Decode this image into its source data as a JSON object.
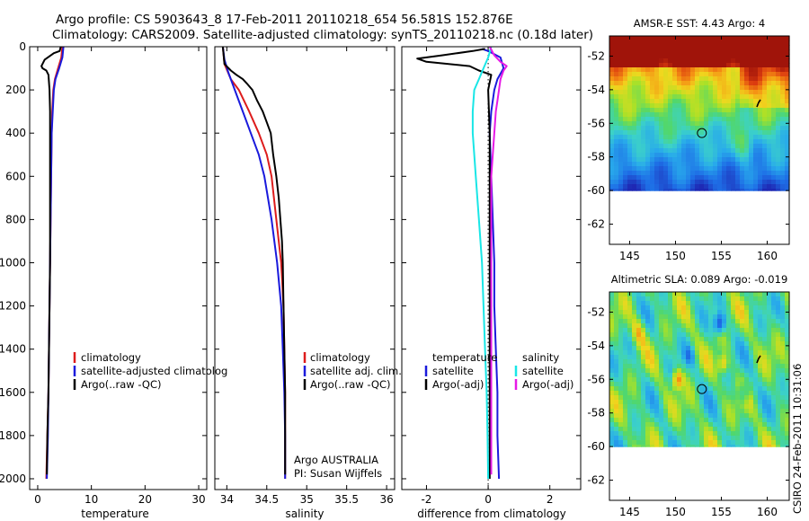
{
  "header": {
    "line1": "Argo profile: CS 5903643_8 17-Feb-2011 20110218_654 56.581S 152.876E",
    "line2": "Climatology: CARS2009. Satellite-adjusted climatology: synTS_20110218.nc (0.18d later)"
  },
  "stamp": "CSIRO 24-Feb-2011 10:31:06",
  "colors": {
    "climatology": "#dd1c1c",
    "satellite_adjusted": "#1a1adc",
    "argo": "#000000",
    "satellite_salinity": "#19e6e6",
    "argo_adj_salinity": "#e619e6"
  },
  "chart_data": [
    {
      "type": "line",
      "xlabel": "temperature",
      "ylabel": "",
      "xlim": [
        -1.5,
        31.5
      ],
      "ylim": [
        2050,
        0
      ],
      "xticks": [
        0,
        10,
        20,
        30
      ],
      "yticks": [
        0,
        200,
        400,
        600,
        800,
        1000,
        1200,
        1400,
        1600,
        1800,
        2000
      ],
      "legend": [
        "climatology",
        "satellite-adjusted climatolog",
        "Argo(..raw -QC)"
      ],
      "series": [
        {
          "name": "climatology",
          "color": "#dd1c1c",
          "points": [
            [
              4.6,
              0
            ],
            [
              4.4,
              50
            ],
            [
              3.8,
              100
            ],
            [
              3.2,
              150
            ],
            [
              2.9,
              200
            ],
            [
              2.7,
              300
            ],
            [
              2.6,
              400
            ],
            [
              2.5,
              600
            ],
            [
              2.4,
              800
            ],
            [
              2.3,
              1000
            ],
            [
              2.2,
              1200
            ],
            [
              2.1,
              1400
            ],
            [
              2.0,
              1600
            ],
            [
              1.8,
              1800
            ],
            [
              1.6,
              2000
            ]
          ]
        },
        {
          "name": "satellite-adjusted climatolog",
          "color": "#1a1adc",
          "points": [
            [
              4.8,
              0
            ],
            [
              4.6,
              50
            ],
            [
              4.0,
              100
            ],
            [
              3.3,
              150
            ],
            [
              3.0,
              200
            ],
            [
              2.8,
              300
            ],
            [
              2.6,
              400
            ],
            [
              2.5,
              600
            ],
            [
              2.4,
              800
            ],
            [
              2.3,
              1000
            ],
            [
              2.2,
              1200
            ],
            [
              2.1,
              1400
            ],
            [
              2.0,
              1600
            ],
            [
              1.9,
              1800
            ],
            [
              1.7,
              2000
            ]
          ]
        },
        {
          "name": "Argo(..raw -QC)",
          "color": "#000000",
          "points": [
            [
              4.3,
              0
            ],
            [
              4.1,
              20
            ],
            [
              3.0,
              30
            ],
            [
              1.3,
              60
            ],
            [
              0.7,
              90
            ],
            [
              0.9,
              100
            ],
            [
              1.6,
              110
            ],
            [
              2.0,
              130
            ],
            [
              2.2,
              200
            ],
            [
              2.3,
              300
            ],
            [
              2.3,
              400
            ],
            [
              2.3,
              600
            ],
            [
              2.3,
              800
            ],
            [
              2.3,
              1000
            ],
            [
              2.2,
              1200
            ],
            [
              2.1,
              1400
            ],
            [
              2.0,
              1600
            ],
            [
              1.8,
              1800
            ],
            [
              1.7,
              1980
            ]
          ]
        }
      ]
    },
    {
      "type": "line",
      "xlabel": "salinity",
      "ylabel": "",
      "xlim": [
        33.85,
        36.1
      ],
      "ylim": [
        2050,
        0
      ],
      "xticks": [
        34,
        34.5,
        35,
        35.5,
        36
      ],
      "legend": [
        "climatology",
        "satellite adj. clim.",
        "Argo(..raw -QC)"
      ],
      "annotations": [
        "Argo AUSTRALIA",
        "PI: Susan Wijffels"
      ],
      "series": [
        {
          "name": "climatology",
          "color": "#dd1c1c",
          "points": [
            [
              33.95,
              0
            ],
            [
              33.97,
              80
            ],
            [
              34.05,
              150
            ],
            [
              34.15,
              200
            ],
            [
              34.28,
              300
            ],
            [
              34.4,
              400
            ],
            [
              34.5,
              500
            ],
            [
              34.56,
              600
            ],
            [
              34.62,
              800
            ],
            [
              34.68,
              1000
            ],
            [
              34.71,
              1200
            ],
            [
              34.72,
              1400
            ],
            [
              34.73,
              1600
            ],
            [
              34.73,
              1800
            ],
            [
              34.73,
              2000
            ]
          ]
        },
        {
          "name": "satellite adj. clim.",
          "color": "#1a1adc",
          "points": [
            [
              33.95,
              0
            ],
            [
              33.97,
              60
            ],
            [
              34.02,
              120
            ],
            [
              34.1,
              200
            ],
            [
              34.2,
              300
            ],
            [
              34.3,
              400
            ],
            [
              34.4,
              500
            ],
            [
              34.47,
              600
            ],
            [
              34.56,
              800
            ],
            [
              34.63,
              1000
            ],
            [
              34.68,
              1200
            ],
            [
              34.7,
              1400
            ],
            [
              34.72,
              1600
            ],
            [
              34.73,
              1800
            ],
            [
              34.73,
              2000
            ]
          ]
        },
        {
          "name": "Argo(..raw -QC)",
          "color": "#000000",
          "points": [
            [
              33.95,
              0
            ],
            [
              33.97,
              80
            ],
            [
              34.05,
              110
            ],
            [
              34.12,
              130
            ],
            [
              34.2,
              150
            ],
            [
              34.25,
              170
            ],
            [
              34.32,
              200
            ],
            [
              34.38,
              250
            ],
            [
              34.45,
              300
            ],
            [
              34.5,
              350
            ],
            [
              34.55,
              400
            ],
            [
              34.58,
              500
            ],
            [
              34.62,
              600
            ],
            [
              34.65,
              700
            ],
            [
              34.67,
              800
            ],
            [
              34.69,
              900
            ],
            [
              34.7,
              1000
            ],
            [
              34.71,
              1200
            ],
            [
              34.72,
              1400
            ],
            [
              34.73,
              1600
            ],
            [
              34.73,
              1800
            ],
            [
              34.73,
              1980
            ]
          ]
        }
      ]
    },
    {
      "type": "line",
      "xlabel": "difference from climatology",
      "ylabel": "",
      "xlim": [
        -2.8,
        3.0
      ],
      "ylim": [
        2050,
        0
      ],
      "xticks": [
        -2,
        0,
        2
      ],
      "legend_columns": [
        {
          "heading": "temperature",
          "items": [
            "satellite",
            "Argo(-adj)"
          ]
        },
        {
          "heading": "salinity",
          "items": [
            "satellite",
            "Argo(-adj)"
          ]
        }
      ],
      "series": [
        {
          "name": "temperature satellite",
          "color": "#1a1adc",
          "points": [
            [
              -0.2,
              10
            ],
            [
              0.0,
              20
            ],
            [
              0.4,
              50
            ],
            [
              0.5,
              100
            ],
            [
              0.3,
              150
            ],
            [
              0.2,
              200
            ],
            [
              0.1,
              300
            ],
            [
              0.05,
              400
            ],
            [
              0.1,
              600
            ],
            [
              0.15,
              800
            ],
            [
              0.2,
              1000
            ],
            [
              0.2,
              1200
            ],
            [
              0.25,
              1400
            ],
            [
              0.3,
              1600
            ],
            [
              0.3,
              1800
            ],
            [
              0.35,
              2000
            ]
          ]
        },
        {
          "name": "temperature Argo(-adj)",
          "color": "#000000",
          "points": [
            [
              -0.1,
              10
            ],
            [
              -0.5,
              20
            ],
            [
              -1.5,
              40
            ],
            [
              -2.3,
              55
            ],
            [
              -2.0,
              70
            ],
            [
              -0.6,
              90
            ],
            [
              -0.3,
              110
            ],
            [
              0.1,
              130
            ],
            [
              0.0,
              200
            ],
            [
              0.05,
              400
            ],
            [
              0.05,
              800
            ],
            [
              0.05,
              1200
            ],
            [
              0.05,
              1600
            ],
            [
              0.05,
              2000
            ]
          ]
        },
        {
          "name": "salinity satellite",
          "color": "#19e6e6",
          "points": [
            [
              0.1,
              0
            ],
            [
              0.0,
              50
            ],
            [
              -0.15,
              100
            ],
            [
              -0.3,
              150
            ],
            [
              -0.45,
              200
            ],
            [
              -0.5,
              300
            ],
            [
              -0.5,
              400
            ],
            [
              -0.45,
              500
            ],
            [
              -0.4,
              600
            ],
            [
              -0.3,
              800
            ],
            [
              -0.2,
              1000
            ],
            [
              -0.15,
              1200
            ],
            [
              -0.1,
              1400
            ],
            [
              -0.05,
              1600
            ],
            [
              -0.02,
              1800
            ],
            [
              0.0,
              2000
            ]
          ]
        },
        {
          "name": "salinity Argo(-adj)",
          "color": "#e619e6",
          "points": [
            [
              0.05,
              0
            ],
            [
              0.2,
              40
            ],
            [
              0.4,
              70
            ],
            [
              0.6,
              90
            ],
            [
              0.5,
              110
            ],
            [
              0.4,
              150
            ],
            [
              0.35,
              200
            ],
            [
              0.3,
              250
            ],
            [
              0.25,
              300
            ],
            [
              0.2,
              400
            ],
            [
              0.15,
              500
            ],
            [
              0.1,
              600
            ],
            [
              0.1,
              800
            ],
            [
              0.1,
              1000
            ],
            [
              0.1,
              1200
            ],
            [
              0.1,
              1400
            ],
            [
              0.1,
              1600
            ],
            [
              0.1,
              1800
            ],
            [
              0.1,
              1980
            ]
          ]
        }
      ]
    },
    {
      "type": "heatmap",
      "title": "AMSR-E SST: 4.43 Argo: 4",
      "xlim": [
        142.8,
        162.4
      ],
      "ylim": [
        -63.2,
        -50.8
      ],
      "xticks": [
        145,
        150,
        155,
        160
      ],
      "yticks": [
        -52,
        -54,
        -56,
        -58,
        -60,
        -62
      ],
      "data_lat_min": -60,
      "marker": {
        "lon": 152.876,
        "lat": -56.581
      }
    },
    {
      "type": "heatmap",
      "title": "Altimetric SLA: 0.089 Argo: -0.019",
      "xlim": [
        142.8,
        162.4
      ],
      "ylim": [
        -63.2,
        -50.8
      ],
      "xticks": [
        145,
        150,
        155,
        160
      ],
      "yticks": [
        -52,
        -54,
        -56,
        -58,
        -60,
        -62
      ],
      "data_lat_min": -60,
      "marker": {
        "lon": 152.876,
        "lat": -56.581
      }
    }
  ]
}
